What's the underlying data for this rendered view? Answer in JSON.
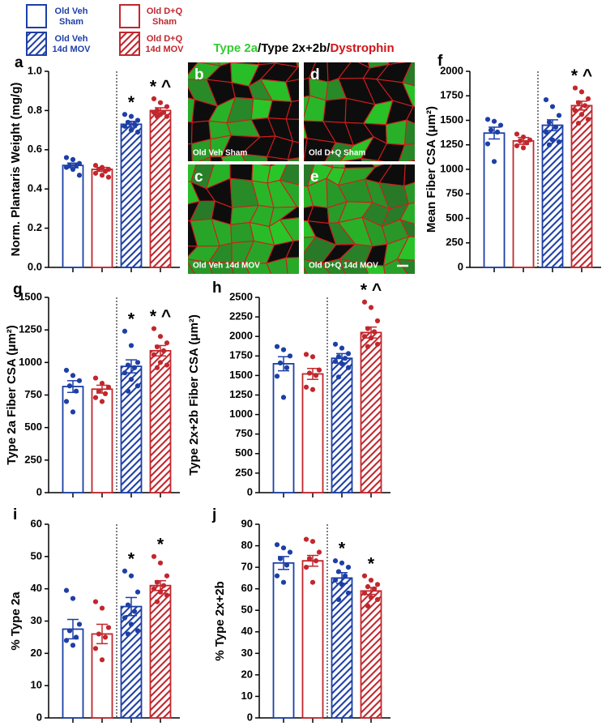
{
  "legend": [
    {
      "lines": [
        "Old Veh",
        "Sham"
      ],
      "color": "#1d3fa6",
      "hatched": false
    },
    {
      "lines": [
        "Old D+Q",
        "Sham"
      ],
      "color": "#c1272d",
      "hatched": false
    },
    {
      "lines": [
        "Old Veh",
        "14d MOV"
      ],
      "color": "#1d3fa6",
      "hatched": true
    },
    {
      "lines": [
        "Old D+Q",
        "14d MOV"
      ],
      "color": "#c1272d",
      "hatched": true
    }
  ],
  "micrograph": {
    "title": [
      {
        "text": "Type 2a",
        "color": "#33cc33"
      },
      {
        "text": "/Type 2x+2b/",
        "color": "#000000"
      },
      {
        "text": "Dystrophin",
        "color": "#d0161b"
      }
    ],
    "panels": [
      {
        "letter": "b",
        "caption": "Old Veh Sham"
      },
      {
        "letter": "d",
        "caption": "Old D+Q Sham"
      },
      {
        "letter": "c",
        "caption": "Old Veh 14d MOV"
      },
      {
        "letter": "e",
        "caption": "Old D+Q 14d MOV"
      }
    ]
  },
  "chart_data": [
    {
      "type": "bar",
      "label": "a",
      "ylabel": "Norm. Plantaris Weight (mg/g)",
      "ylim": [
        0,
        1
      ],
      "yticks": [
        {
          "value": 0,
          "label": "0.0"
        },
        0.2,
        0.4,
        0.6,
        0.8,
        {
          "value": 1,
          "label": "1.0"
        }
      ],
      "categories": [
        null,
        null,
        null,
        null
      ],
      "colors": [
        "#1d3fa6",
        "#c1272d",
        "#1d3fa6",
        "#c1272d"
      ],
      "hatched": [
        false,
        false,
        true,
        true
      ],
      "values": [
        0.52,
        0.5,
        0.73,
        0.8
      ],
      "errors": [
        0.012,
        0.01,
        0.015,
        0.014
      ],
      "points": [
        [
          0.56,
          0.55,
          0.53,
          0.52,
          0.52,
          0.51,
          0.5,
          0.47
        ],
        [
          0.52,
          0.51,
          0.5,
          0.5,
          0.49,
          0.48,
          0.47,
          0.46
        ],
        [
          0.78,
          0.77,
          0.75,
          0.74,
          0.73,
          0.72,
          0.7,
          0.69
        ],
        [
          0.86,
          0.84,
          0.82,
          0.8,
          0.79,
          0.79,
          0.78,
          0.77,
          0.77
        ]
      ],
      "annotations": [
        null,
        null,
        "*",
        "* ^"
      ]
    },
    {
      "type": "bar",
      "label": "f",
      "ylabel": "Mean Fiber CSA (μm²)",
      "ylim": [
        0,
        2000
      ],
      "yticks": [
        0,
        250,
        500,
        750,
        1000,
        1250,
        1500,
        1750,
        2000
      ],
      "categories": [
        null,
        null,
        null,
        null
      ],
      "colors": [
        "#1d3fa6",
        "#c1272d",
        "#1d3fa6",
        "#c1272d"
      ],
      "hatched": [
        false,
        false,
        true,
        true
      ],
      "values": [
        1370,
        1290,
        1450,
        1650
      ],
      "errors": [
        60,
        35,
        55,
        45
      ],
      "points": [
        [
          1510,
          1490,
          1450,
          1400,
          1380,
          1260,
          1080
        ],
        [
          1360,
          1330,
          1300,
          1290,
          1270,
          1240,
          1220
        ],
        [
          1710,
          1640,
          1550,
          1480,
          1430,
          1380,
          1300,
          1280,
          1250
        ],
        [
          1830,
          1790,
          1720,
          1680,
          1650,
          1600,
          1560,
          1510,
          1470
        ]
      ],
      "annotations": [
        null,
        null,
        null,
        "* ^"
      ]
    },
    {
      "type": "bar",
      "label": "g",
      "ylabel": "Type 2a Fiber CSA (μm²)",
      "ylim": [
        0,
        1500
      ],
      "yticks": [
        0,
        250,
        500,
        750,
        1000,
        1250,
        1500
      ],
      "categories": [
        null,
        null,
        null,
        null
      ],
      "colors": [
        "#1d3fa6",
        "#c1272d",
        "#1d3fa6",
        "#c1272d"
      ],
      "hatched": [
        false,
        false,
        true,
        true
      ],
      "values": [
        815,
        795,
        970,
        1090
      ],
      "errors": [
        45,
        30,
        50,
        40
      ],
      "points": [
        [
          940,
          900,
          860,
          820,
          780,
          700,
          620
        ],
        [
          880,
          840,
          810,
          780,
          760,
          730,
          700
        ],
        [
          1240,
          1130,
          1000,
          980,
          960,
          920,
          870,
          820,
          780
        ],
        [
          1260,
          1200,
          1150,
          1120,
          1090,
          1060,
          1000,
          980,
          960
        ]
      ],
      "annotations": [
        null,
        null,
        "*",
        "* ^"
      ]
    },
    {
      "type": "bar",
      "label": "h",
      "ylabel": "Type 2x+2b Fiber CSA (μm²)",
      "ylim": [
        0,
        2500
      ],
      "yticks": [
        0,
        250,
        500,
        750,
        1000,
        1250,
        1500,
        1750,
        2000,
        2250,
        2500
      ],
      "categories": [
        null,
        null,
        null,
        null
      ],
      "colors": [
        "#1d3fa6",
        "#c1272d",
        "#1d3fa6",
        "#c1272d"
      ],
      "hatched": [
        false,
        false,
        true,
        true
      ],
      "values": [
        1650,
        1520,
        1720,
        2050
      ],
      "errors": [
        90,
        70,
        60,
        70
      ],
      "points": [
        [
          1870,
          1830,
          1750,
          1660,
          1600,
          1490,
          1220
        ],
        [
          1770,
          1740,
          1570,
          1530,
          1500,
          1350,
          1320
        ],
        [
          1900,
          1850,
          1780,
          1740,
          1720,
          1680,
          1650,
          1600,
          1480
        ],
        [
          2440,
          2370,
          2200,
          2100,
          2060,
          2000,
          1980,
          1900,
          1870
        ]
      ],
      "annotations": [
        null,
        null,
        null,
        "* ^"
      ]
    },
    {
      "type": "bar",
      "label": "i",
      "ylabel": "% Type 2a",
      "ylim": [
        0,
        60
      ],
      "yticks": [
        0,
        10,
        20,
        30,
        40,
        50,
        60
      ],
      "categories": [
        null,
        null,
        null,
        null
      ],
      "colors": [
        "#1d3fa6",
        "#c1272d",
        "#1d3fa6",
        "#c1272d"
      ],
      "hatched": [
        false,
        false,
        true,
        true
      ],
      "values": [
        27.5,
        26,
        34.5,
        41
      ],
      "errors": [
        3,
        3,
        2.8,
        1.5
      ],
      "points": [
        [
          39.5,
          37,
          29,
          27,
          25,
          24,
          22.5
        ],
        [
          36,
          34,
          28,
          26,
          25,
          21.5,
          18
        ],
        [
          45.5,
          44,
          39,
          35,
          33,
          31,
          29,
          27,
          26
        ],
        [
          50,
          48,
          44,
          42,
          41,
          40,
          39,
          38,
          36
        ]
      ],
      "annotations": [
        null,
        null,
        "*",
        "*"
      ]
    },
    {
      "type": "bar",
      "label": "j",
      "ylabel": "% Type 2x+2b",
      "ylim": [
        0,
        90
      ],
      "yticks": [
        0,
        10,
        20,
        30,
        40,
        50,
        60,
        70,
        80,
        90
      ],
      "categories": [
        null,
        null,
        null,
        null
      ],
      "colors": [
        "#1d3fa6",
        "#c1272d",
        "#1d3fa6",
        "#c1272d"
      ],
      "hatched": [
        false,
        false,
        true,
        true
      ],
      "values": [
        72,
        73,
        65,
        59
      ],
      "errors": [
        3,
        2.5,
        2.5,
        1.6
      ],
      "points": [
        [
          80.5,
          79,
          77,
          74,
          71,
          66,
          63
        ],
        [
          83,
          82,
          77,
          74,
          73,
          70,
          63
        ],
        [
          73,
          72,
          70,
          68,
          66,
          64,
          62,
          58,
          55
        ],
        [
          66,
          64,
          62,
          61,
          60,
          58,
          56,
          55,
          52
        ]
      ],
      "annotations": [
        null,
        null,
        "*",
        "*"
      ]
    }
  ]
}
